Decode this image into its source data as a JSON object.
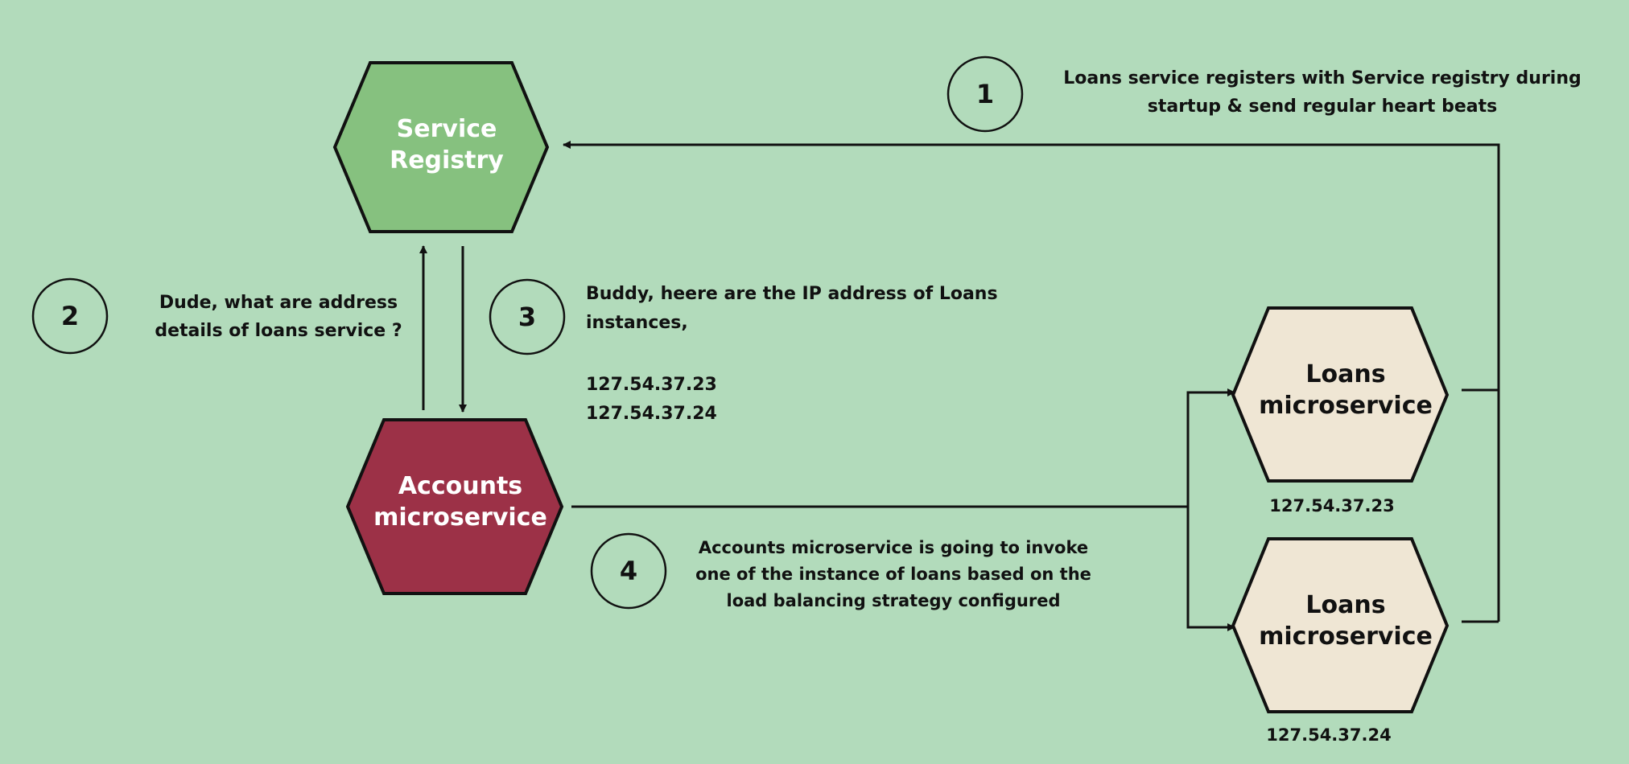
{
  "colors": {
    "background": "#b2dbbb",
    "service_registry_fill": "#86c17f",
    "accounts_fill": "#9c3147",
    "loans_fill": "#efe6d4",
    "stroke": "#111111"
  },
  "nodes": {
    "service_registry": {
      "line1": "Service",
      "line2": "Registry"
    },
    "accounts": {
      "line1": "Accounts",
      "line2": "microservice"
    },
    "loans_1": {
      "line1": "Loans",
      "line2": "microservice",
      "ip": "127.54.37.23"
    },
    "loans_2": {
      "line1": "Loans",
      "line2": "microservice",
      "ip": "127.54.37.24"
    }
  },
  "steps": [
    {
      "number": "1",
      "line1": "Loans service registers with Service registry during",
      "line2": "startup & send regular heart beats"
    },
    {
      "number": "2",
      "line1": "Dude, what are address",
      "line2": "details of loans service ?"
    },
    {
      "number": "3",
      "line1": "Buddy, heere are the IP address of Loans",
      "line2": "instances,",
      "ip1": "127.54.37.23",
      "ip2": "127.54.37.24"
    },
    {
      "number": "4",
      "line1": "Accounts microservice is going to invoke",
      "line2": "one of the instance of loans based on the",
      "line3": "load balancing strategy configured"
    }
  ]
}
